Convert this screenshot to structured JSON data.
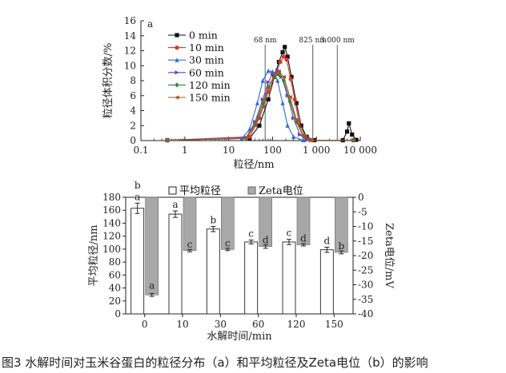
{
  "caption": "图3 水解时间对玉米谷蛋白的粒径分布（a）和平均粒径及Zeta电位（b）的影响",
  "chart_data": [
    {
      "type": "line",
      "panel_label": "a",
      "xlabel": "粒径/nm",
      "ylabel": "粒径体积分数/%",
      "xscale": "log",
      "xlim": [
        0.1,
        10000
      ],
      "ylim": [
        0,
        16
      ],
      "x_ticks": [
        0.1,
        1,
        10,
        100,
        1000,
        10000
      ],
      "x_tick_labels": [
        "0.1",
        "1",
        "10",
        "100",
        "1 000",
        "10 000"
      ],
      "y_ticks": [
        0,
        2,
        4,
        6,
        8,
        10,
        12,
        14,
        16
      ],
      "y_tick_labels": [
        "0",
        "2",
        "4",
        "6",
        "8",
        "10",
        "12",
        "14",
        "16"
      ],
      "legend": "top-left",
      "grid": false,
      "reference_lines": [
        {
          "x": 68,
          "label": "68 nm"
        },
        {
          "x": 825,
          "label": "825 nm"
        },
        {
          "x": 3000,
          "label": "3 000 nm"
        }
      ],
      "series": [
        {
          "name": "0 min",
          "color": "#111111",
          "marker": "square",
          "points": [
            [
              0.4,
              0.05
            ],
            [
              30,
              0.3
            ],
            [
              50,
              2
            ],
            [
              80,
              5.5
            ],
            [
              110,
              8.5
            ],
            [
              140,
              10.5
            ],
            [
              170,
              11.8
            ],
            [
              190,
              12.5
            ],
            [
              220,
              11.2
            ],
            [
              270,
              8.5
            ],
            [
              350,
              5
            ],
            [
              450,
              2
            ],
            [
              600,
              0.5
            ],
            [
              900,
              0.05
            ],
            [
              4000,
              0.05
            ],
            [
              5000,
              1.2
            ],
            [
              5500,
              2.3
            ],
            [
              6500,
              0.8
            ],
            [
              8000,
              0.1
            ]
          ]
        },
        {
          "name": "10 min",
          "color": "#d83a2a",
          "marker": "circle",
          "points": [
            [
              0.4,
              0.05
            ],
            [
              30,
              0.5
            ],
            [
              50,
              3
            ],
            [
              80,
              6.5
            ],
            [
              120,
              9
            ],
            [
              150,
              10.5
            ],
            [
              180,
              11.2
            ],
            [
              210,
              10.8
            ],
            [
              260,
              8.2
            ],
            [
              320,
              5.5
            ],
            [
              400,
              2.5
            ],
            [
              550,
              0.6
            ],
            [
              800,
              0.05
            ],
            [
              7000,
              0.05
            ]
          ]
        },
        {
          "name": "30 min",
          "color": "#2a6fd8",
          "marker": "triangle",
          "points": [
            [
              0.4,
              0.05
            ],
            [
              20,
              0.3
            ],
            [
              30,
              1.5
            ],
            [
              45,
              5
            ],
            [
              60,
              8
            ],
            [
              80,
              9.3
            ],
            [
              100,
              9.2
            ],
            [
              130,
              8
            ],
            [
              170,
              5
            ],
            [
              220,
              2
            ],
            [
              300,
              0.5
            ],
            [
              500,
              0.05
            ],
            [
              7000,
              0.05
            ]
          ]
        },
        {
          "name": "60 min",
          "color": "#7a3ac0",
          "marker": "triangle-right",
          "points": [
            [
              0.4,
              0.05
            ],
            [
              25,
              0.4
            ],
            [
              40,
              2.5
            ],
            [
              60,
              5.5
            ],
            [
              80,
              7.8
            ],
            [
              100,
              8.9
            ],
            [
              130,
              9.4
            ],
            [
              160,
              8.5
            ],
            [
              220,
              6
            ],
            [
              300,
              3
            ],
            [
              420,
              0.8
            ],
            [
              600,
              0.05
            ],
            [
              7000,
              0.05
            ]
          ]
        },
        {
          "name": "120 min",
          "color": "#2a8a3a",
          "marker": "diamond",
          "points": [
            [
              0.4,
              0.05
            ],
            [
              25,
              0.3
            ],
            [
              40,
              2.2
            ],
            [
              60,
              5
            ],
            [
              80,
              7.2
            ],
            [
              110,
              8.5
            ],
            [
              140,
              8.8
            ],
            [
              180,
              8
            ],
            [
              250,
              5.2
            ],
            [
              350,
              2.5
            ],
            [
              500,
              0.6
            ],
            [
              700,
              0.05
            ],
            [
              7000,
              0.05
            ]
          ]
        },
        {
          "name": "150 min",
          "color": "#9a5a2a",
          "marker": "triangle-left",
          "points": [
            [
              0.4,
              0.05
            ],
            [
              25,
              0.3
            ],
            [
              40,
              2
            ],
            [
              60,
              4.5
            ],
            [
              80,
              7
            ],
            [
              110,
              8.8
            ],
            [
              140,
              9.2
            ],
            [
              180,
              8.5
            ],
            [
              250,
              5.8
            ],
            [
              350,
              2.8
            ],
            [
              500,
              0.7
            ],
            [
              700,
              0.05
            ],
            [
              7000,
              0.05
            ]
          ]
        }
      ]
    },
    {
      "type": "bar",
      "panel_label": "b",
      "categories": [
        "0",
        "10",
        "30",
        "60",
        "120",
        "150"
      ],
      "xlabel": "水解时间/min",
      "ylabel": "平均粒径/nm",
      "ylabel_right": "Zeta电位/mV",
      "ylim": [
        0,
        180
      ],
      "ylim_right": [
        0,
        -40
      ],
      "y_ticks": [
        0,
        20,
        40,
        60,
        80,
        100,
        120,
        140,
        160,
        180
      ],
      "y_tick_labels": [
        "0",
        "20",
        "40",
        "60",
        "80",
        "100",
        "120",
        "140",
        "160",
        "180"
      ],
      "y_right_ticks": [
        0,
        -5,
        -10,
        -15,
        -20,
        -25,
        -30,
        -35,
        -40
      ],
      "y_right_tick_labels": [
        "0",
        "-5",
        "-10",
        "-15",
        "-20",
        "-25",
        "-30",
        "-35",
        "-40"
      ],
      "legend": "top",
      "series": [
        {
          "name": "平均粒径",
          "axis": "left",
          "color": "#ffffff",
          "values": [
            163,
            154,
            131,
            111,
            111,
            99
          ],
          "errors": [
            8,
            5,
            4,
            3,
            4,
            4
          ],
          "sig": [
            "a",
            "a",
            "b",
            "c",
            "c",
            "d"
          ]
        },
        {
          "name": "Zeta电位",
          "axis": "right",
          "color": "#a8a8a8",
          "values": [
            -33.5,
            -18.3,
            -17.9,
            -16.9,
            -16.3,
            -18.9
          ],
          "errors": [
            0.5,
            0.4,
            0.4,
            0.6,
            0.4,
            0.5
          ],
          "sig": [
            "a",
            "c",
            "c",
            "d",
            "d",
            "b"
          ]
        }
      ],
      "extra_annotations": [
        {
          "category": "0",
          "text": "b"
        }
      ]
    }
  ]
}
